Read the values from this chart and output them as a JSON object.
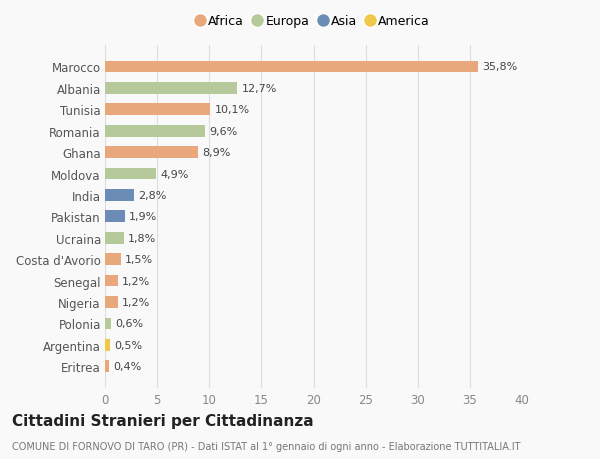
{
  "categories": [
    "Marocco",
    "Albania",
    "Tunisia",
    "Romania",
    "Ghana",
    "Moldova",
    "India",
    "Pakistan",
    "Ucraina",
    "Costa d'Avorio",
    "Senegal",
    "Nigeria",
    "Polonia",
    "Argentina",
    "Eritrea"
  ],
  "values": [
    35.8,
    12.7,
    10.1,
    9.6,
    8.9,
    4.9,
    2.8,
    1.9,
    1.8,
    1.5,
    1.2,
    1.2,
    0.6,
    0.5,
    0.4
  ],
  "labels": [
    "35,8%",
    "12,7%",
    "10,1%",
    "9,6%",
    "8,9%",
    "4,9%",
    "2,8%",
    "1,9%",
    "1,8%",
    "1,5%",
    "1,2%",
    "1,2%",
    "0,6%",
    "0,5%",
    "0,4%"
  ],
  "continents": [
    "Africa",
    "Europa",
    "Africa",
    "Europa",
    "Africa",
    "Europa",
    "Asia",
    "Asia",
    "Europa",
    "Africa",
    "Africa",
    "Africa",
    "Europa",
    "America",
    "Africa"
  ],
  "continent_colors": {
    "Africa": "#E8A87C",
    "Europa": "#B5C99A",
    "Asia": "#6B8DB5",
    "America": "#F0C84A"
  },
  "legend_order": [
    "Africa",
    "Europa",
    "Asia",
    "America"
  ],
  "title": "Cittadini Stranieri per Cittadinanza",
  "subtitle": "COMUNE DI FORNOVO DI TARO (PR) - Dati ISTAT al 1° gennaio di ogni anno - Elaborazione TUTTITALIA.IT",
  "xlim": [
    0,
    40
  ],
  "xticks": [
    0,
    5,
    10,
    15,
    20,
    25,
    30,
    35,
    40
  ],
  "background_color": "#f9f9f9",
  "bar_height": 0.55,
  "grid_color": "#dddddd",
  "label_fontsize": 8.0,
  "tick_label_fontsize": 8.5,
  "ytick_fontsize": 8.5,
  "title_fontsize": 11,
  "subtitle_fontsize": 7.0,
  "legend_fontsize": 9.0
}
